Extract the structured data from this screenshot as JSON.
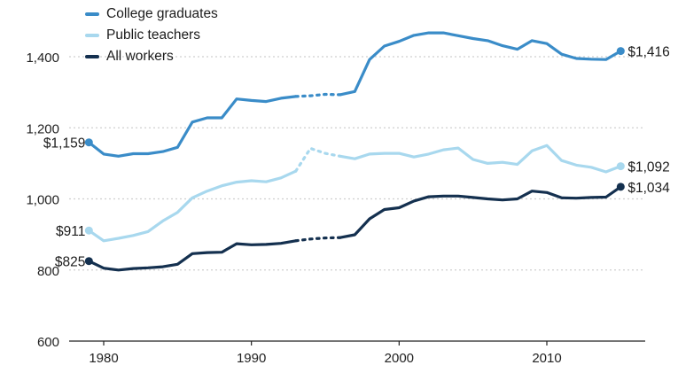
{
  "chart_data": {
    "type": "line",
    "title": "",
    "xlabel": "",
    "ylabel": "",
    "xlim": [
      1977.5,
      2018
    ],
    "ylim": [
      600,
      1480
    ],
    "y_ticks": [
      600,
      800,
      1000,
      1200,
      1400
    ],
    "y_tick_labels": [
      "600",
      "800",
      "1,000",
      "1,200",
      "1,400"
    ],
    "x_ticks": [
      1980,
      1990,
      2000,
      2010
    ],
    "x_tick_labels": [
      "1980",
      "1990",
      "2000",
      "2010"
    ],
    "gap": {
      "from": 1993,
      "to": 1996,
      "style": "dotted"
    },
    "legend": {
      "position": "top-left"
    },
    "series": [
      {
        "name": "College graduates",
        "color": "#3a8cc8",
        "start_label": "$1,159",
        "end_label": "$1,416",
        "points": [
          [
            1979,
            1159
          ],
          [
            1980,
            1126
          ],
          [
            1981,
            1120
          ],
          [
            1982,
            1127
          ],
          [
            1983,
            1127
          ],
          [
            1984,
            1133
          ],
          [
            1985,
            1145
          ],
          [
            1986,
            1216
          ],
          [
            1987,
            1228
          ],
          [
            1988,
            1228
          ],
          [
            1989,
            1281
          ],
          [
            1990,
            1277
          ],
          [
            1991,
            1274
          ],
          [
            1992,
            1283
          ],
          [
            1993,
            1288
          ],
          [
            1994,
            1290
          ],
          [
            1995,
            1294
          ],
          [
            1996,
            1293
          ],
          [
            1997,
            1302
          ],
          [
            1998,
            1392
          ],
          [
            1999,
            1430
          ],
          [
            2000,
            1443
          ],
          [
            2001,
            1460
          ],
          [
            2002,
            1467
          ],
          [
            2003,
            1467
          ],
          [
            2004,
            1459
          ],
          [
            2005,
            1451
          ],
          [
            2006,
            1445
          ],
          [
            2007,
            1431
          ],
          [
            2008,
            1421
          ],
          [
            2009,
            1445
          ],
          [
            2010,
            1437
          ],
          [
            2011,
            1407
          ],
          [
            2012,
            1395
          ],
          [
            2013,
            1393
          ],
          [
            2014,
            1392
          ],
          [
            2015,
            1416
          ]
        ]
      },
      {
        "name": "Public teachers",
        "color": "#a8d8ee",
        "start_label": "$911",
        "end_label": "$1,092",
        "points": [
          [
            1979,
            911
          ],
          [
            1980,
            882
          ],
          [
            1981,
            889
          ],
          [
            1982,
            897
          ],
          [
            1983,
            908
          ],
          [
            1984,
            938
          ],
          [
            1985,
            962
          ],
          [
            1986,
            1003
          ],
          [
            1987,
            1022
          ],
          [
            1988,
            1037
          ],
          [
            1989,
            1047
          ],
          [
            1990,
            1051
          ],
          [
            1991,
            1048
          ],
          [
            1992,
            1059
          ],
          [
            1993,
            1078
          ],
          [
            1994,
            1142
          ],
          [
            1995,
            1128
          ],
          [
            1996,
            1120
          ],
          [
            1997,
            1113
          ],
          [
            1998,
            1126
          ],
          [
            1999,
            1128
          ],
          [
            2000,
            1128
          ],
          [
            2001,
            1118
          ],
          [
            2002,
            1126
          ],
          [
            2003,
            1138
          ],
          [
            2004,
            1143
          ],
          [
            2005,
            1111
          ],
          [
            2006,
            1100
          ],
          [
            2007,
            1103
          ],
          [
            2008,
            1097
          ],
          [
            2009,
            1135
          ],
          [
            2010,
            1150
          ],
          [
            2011,
            1108
          ],
          [
            2012,
            1095
          ],
          [
            2013,
            1089
          ],
          [
            2014,
            1076
          ],
          [
            2015,
            1092
          ]
        ]
      },
      {
        "name": "All workers",
        "color": "#14304f",
        "start_label": "$825",
        "end_label": "$1,034",
        "points": [
          [
            1979,
            825
          ],
          [
            1980,
            805
          ],
          [
            1981,
            800
          ],
          [
            1982,
            804
          ],
          [
            1983,
            806
          ],
          [
            1984,
            809
          ],
          [
            1985,
            816
          ],
          [
            1986,
            846
          ],
          [
            1987,
            849
          ],
          [
            1988,
            850
          ],
          [
            1989,
            874
          ],
          [
            1990,
            871
          ],
          [
            1991,
            872
          ],
          [
            1992,
            875
          ],
          [
            1993,
            882
          ],
          [
            1994,
            887
          ],
          [
            1995,
            890
          ],
          [
            1996,
            891
          ],
          [
            1997,
            899
          ],
          [
            1998,
            944
          ],
          [
            1999,
            970
          ],
          [
            2000,
            975
          ],
          [
            2001,
            994
          ],
          [
            2002,
            1006
          ],
          [
            2003,
            1008
          ],
          [
            2004,
            1008
          ],
          [
            2005,
            1004
          ],
          [
            2006,
            1000
          ],
          [
            2007,
            997
          ],
          [
            2008,
            1000
          ],
          [
            2009,
            1022
          ],
          [
            2010,
            1018
          ],
          [
            2011,
            1003
          ],
          [
            2012,
            1002
          ],
          [
            2013,
            1004
          ],
          [
            2014,
            1005
          ],
          [
            2015,
            1034
          ]
        ]
      }
    ]
  }
}
